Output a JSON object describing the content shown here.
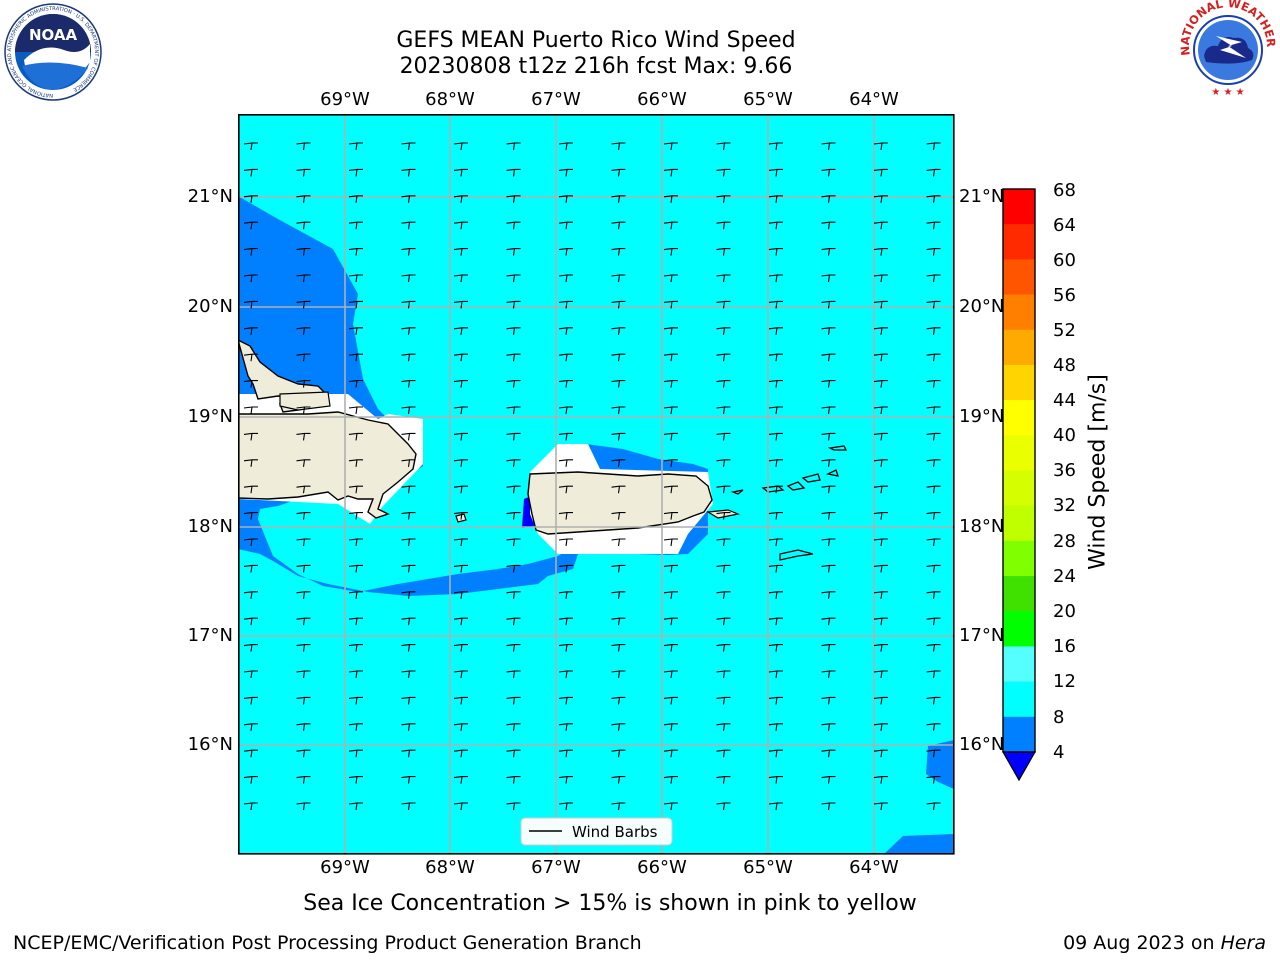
{
  "header": {
    "title_line1": "GEFS MEAN Puerto Rico Wind Speed",
    "title_line2": "20230808 t12z 216h fcst   Max: 9.66"
  },
  "logos": {
    "left": {
      "name": "noaa-logo",
      "text": "NOAA",
      "ring_text": "NATIONAL OCEANIC AND ATMOSPHERIC ADMINISTRATION · U.S. DEPARTMENT OF COMMERCE"
    },
    "right": {
      "name": "nws-logo",
      "ring_text": "NATIONAL WEATHER SERVICE"
    }
  },
  "map": {
    "lon_labels": [
      "69°W",
      "68°W",
      "67°W",
      "66°W",
      "65°W",
      "64°W"
    ],
    "lat_labels": [
      "21°N",
      "20°N",
      "19°N",
      "18°N",
      "17°N",
      "16°N"
    ],
    "legend_label": "Wind Barbs",
    "colors": {
      "ocean_main": "#00ffff",
      "ocean_low": "#0080ff",
      "ocean_lowest": "#0000ff",
      "land": "#efedd9",
      "grid": "#b0b0b0"
    }
  },
  "colorbar": {
    "label": "Wind Speed [m/s]",
    "ticks": [
      "68",
      "64",
      "60",
      "56",
      "52",
      "48",
      "44",
      "40",
      "36",
      "32",
      "28",
      "24",
      "20",
      "16",
      "12",
      "8",
      "4"
    ],
    "colors": [
      "#ff0000",
      "#ff2a00",
      "#ff5500",
      "#ff8000",
      "#ffaa00",
      "#ffd400",
      "#ffff00",
      "#eaff00",
      "#d5ff00",
      "#c0ff00",
      "#80ff00",
      "#40e000",
      "#00ff00",
      "#55ff80",
      "#aaffff",
      "#55ffff",
      "#00ffff",
      "#0080ff"
    ],
    "extend_color": "#0000ff"
  },
  "footer": {
    "note": "Sea Ice Concentration > 15% is shown in pink to yellow",
    "left": "NCEP/EMC/Verification Post Processing Product Generation Branch",
    "right_prefix": "09 Aug 2023 on ",
    "right_machine": "Hera"
  }
}
